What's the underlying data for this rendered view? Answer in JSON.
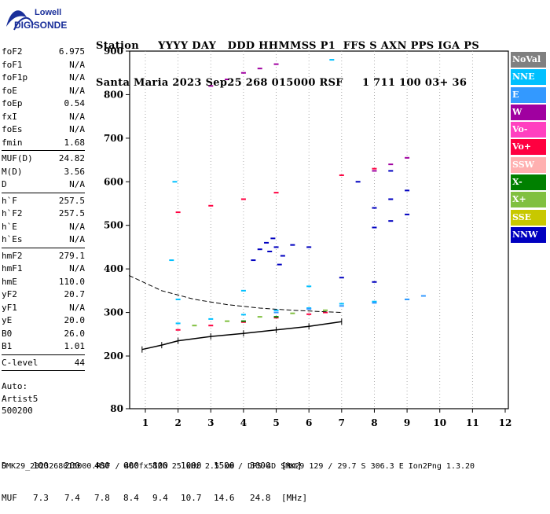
{
  "logo": {
    "top": "Lowell",
    "bottom": "DIGISONDE"
  },
  "header": {
    "line1": "Station     YYYY DAY   DDD HHMMSS P1  FFS S AXN PPS IGA PS",
    "line2": "Santa Maria 2023 Sep25 268 015000 RSF     1 711 100 03+ 36"
  },
  "params": {
    "group1": [
      {
        "label": "foF2",
        "value": "6.975"
      },
      {
        "label": "foF1",
        "value": "N/A"
      },
      {
        "label": "foF1p",
        "value": "N/A"
      },
      {
        "label": "foE",
        "value": "N/A"
      },
      {
        "label": "foEp",
        "value": "0.54"
      },
      {
        "label": "fxI",
        "value": "N/A"
      },
      {
        "label": "foEs",
        "value": "N/A"
      },
      {
        "label": "fmin",
        "value": "1.68"
      }
    ],
    "group2": [
      {
        "label": "MUF(D)",
        "value": "24.82"
      },
      {
        "label": "M(D)",
        "value": "3.56"
      },
      {
        "label": "D",
        "value": "N/A"
      }
    ],
    "group3": [
      {
        "label": "h`F",
        "value": "257.5"
      },
      {
        "label": "h`F2",
        "value": "257.5"
      },
      {
        "label": "h`E",
        "value": "N/A"
      },
      {
        "label": "h`Es",
        "value": "N/A"
      }
    ],
    "group4": [
      {
        "label": "hmF2",
        "value": "279.1"
      },
      {
        "label": "hmF1",
        "value": "N/A"
      },
      {
        "label": "hmE",
        "value": "110.0"
      },
      {
        "label": "yF2",
        "value": "20.7"
      },
      {
        "label": "yF1",
        "value": "N/A"
      },
      {
        "label": "yE",
        "value": "20.0"
      },
      {
        "label": "B0",
        "value": "26.0"
      },
      {
        "label": "B1",
        "value": "1.01"
      }
    ],
    "group5": [
      {
        "label": "C-level",
        "value": "44"
      }
    ]
  },
  "auto": {
    "line1": "Auto:",
    "line2": "Artist5",
    "line3": "500200"
  },
  "legend": [
    {
      "label": "NoVal",
      "color": "#808080"
    },
    {
      "label": "NNE",
      "color": "#00c0ff"
    },
    {
      "label": "E",
      "color": "#3399ff"
    },
    {
      "label": "W",
      "color": "#a000a0"
    },
    {
      "label": "Vo-",
      "color": "#ff40c0"
    },
    {
      "label": "Vo+",
      "color": "#ff0040"
    },
    {
      "label": "SSW",
      "color": "#ffb0b0"
    },
    {
      "label": "X-",
      "color": "#008000"
    },
    {
      "label": "X+",
      "color": "#80c040"
    },
    {
      "label": "SSE",
      "color": "#c8c800"
    },
    {
      "label": "NNW",
      "color": "#0000c0"
    }
  ],
  "muf_table": {
    "d_label": "D",
    "d_values": [
      "100",
      "200",
      "400",
      "600",
      "800",
      "1000",
      "1500",
      "3000",
      "[km]"
    ],
    "muf_label": "MUF",
    "muf_values": [
      "7.3",
      "7.4",
      "7.8",
      "8.4",
      "9.4",
      "10.7",
      "14.6",
      "24.8",
      "[MHz]"
    ]
  },
  "footer": "SMK29_2023268015000.RSF / 460fx512h 25 kHz 2.5 km / DPS-4D SMK29 129 / 29.7 S 306.3 E Ion2Png 1.3.20",
  "chart_data": {
    "type": "scatter",
    "x_ticks": [
      "1",
      "2",
      "3",
      "4",
      "5",
      "6",
      "7",
      "8",
      "9",
      "10",
      "11",
      "12"
    ],
    "y_ticks": [
      "80",
      "200",
      "300",
      "400",
      "500",
      "600",
      "700",
      "800",
      "900"
    ],
    "xlim": [
      0.5,
      12
    ],
    "ylim": [
      80,
      900
    ],
    "grid": "dotted vertical lines at each MHz",
    "series": [
      {
        "name": "NNW",
        "color": "#0000c0",
        "points": [
          [
            4.5,
            445
          ],
          [
            4.8,
            440
          ],
          [
            5.0,
            450
          ],
          [
            5.2,
            430
          ],
          [
            4.3,
            420
          ],
          [
            4.7,
            460
          ],
          [
            5.5,
            455
          ],
          [
            6.0,
            450
          ],
          [
            4.9,
            470
          ],
          [
            5.1,
            410
          ],
          [
            8.0,
            540
          ],
          [
            8.5,
            560
          ],
          [
            9.0,
            580
          ],
          [
            8.0,
            495
          ],
          [
            8.5,
            510
          ],
          [
            9.0,
            525
          ],
          [
            7.5,
            600
          ],
          [
            8.5,
            625
          ],
          [
            7.0,
            380
          ],
          [
            8.0,
            370
          ]
        ]
      },
      {
        "name": "W",
        "color": "#a000a0",
        "points": [
          [
            3.0,
            820
          ],
          [
            3.5,
            835
          ],
          [
            4.0,
            850
          ],
          [
            4.5,
            860
          ],
          [
            5.0,
            870
          ],
          [
            8.0,
            625
          ],
          [
            8.5,
            640
          ],
          [
            9.0,
            655
          ]
        ]
      },
      {
        "name": "Vo+",
        "color": "#ff0040",
        "points": [
          [
            2.0,
            260
          ],
          [
            3.0,
            270
          ],
          [
            4.0,
            278
          ],
          [
            5.0,
            288
          ],
          [
            6.0,
            296
          ],
          [
            6.5,
            300
          ],
          [
            2.0,
            530
          ],
          [
            3.0,
            545
          ],
          [
            4.0,
            560
          ],
          [
            5.0,
            575
          ],
          [
            7.0,
            615
          ],
          [
            8.0,
            630
          ]
        ]
      },
      {
        "name": "NNE",
        "color": "#00c0ff",
        "points": [
          [
            2.0,
            275
          ],
          [
            3.0,
            285
          ],
          [
            4.0,
            295
          ],
          [
            5.0,
            305
          ],
          [
            6.0,
            310
          ],
          [
            7.0,
            320
          ],
          [
            8.0,
            325
          ],
          [
            9.0,
            330
          ],
          [
            2.0,
            330
          ],
          [
            4.0,
            350
          ],
          [
            6.0,
            360
          ],
          [
            1.8,
            420
          ],
          [
            1.9,
            600
          ],
          [
            6.7,
            880
          ]
        ]
      },
      {
        "name": "E",
        "color": "#3399ff",
        "points": [
          [
            5.0,
            300
          ],
          [
            6.0,
            308
          ],
          [
            7.0,
            315
          ],
          [
            8.0,
            322
          ],
          [
            9.0,
            330
          ],
          [
            9.5,
            338
          ]
        ]
      },
      {
        "name": "X+",
        "color": "#80c040",
        "points": [
          [
            2.5,
            270
          ],
          [
            3.5,
            280
          ],
          [
            4.5,
            290
          ],
          [
            5.5,
            298
          ],
          [
            6.5,
            305
          ]
        ]
      },
      {
        "name": "X-",
        "color": "#008000",
        "points": [
          [
            4.0,
            280
          ],
          [
            5.0,
            290
          ]
        ]
      }
    ],
    "profile_curve": [
      [
        0.9,
        215
      ],
      [
        1.5,
        225
      ],
      [
        2.0,
        235
      ],
      [
        3.0,
        245
      ],
      [
        4.0,
        252
      ],
      [
        5.0,
        260
      ],
      [
        6.0,
        268
      ],
      [
        7.0,
        279
      ]
    ],
    "dashed_curve": [
      [
        0.5,
        385
      ],
      [
        1.5,
        350
      ],
      [
        2.5,
        330
      ],
      [
        3.5,
        318
      ],
      [
        4.5,
        310
      ],
      [
        5.5,
        305
      ],
      [
        7.0,
        300
      ]
    ]
  }
}
